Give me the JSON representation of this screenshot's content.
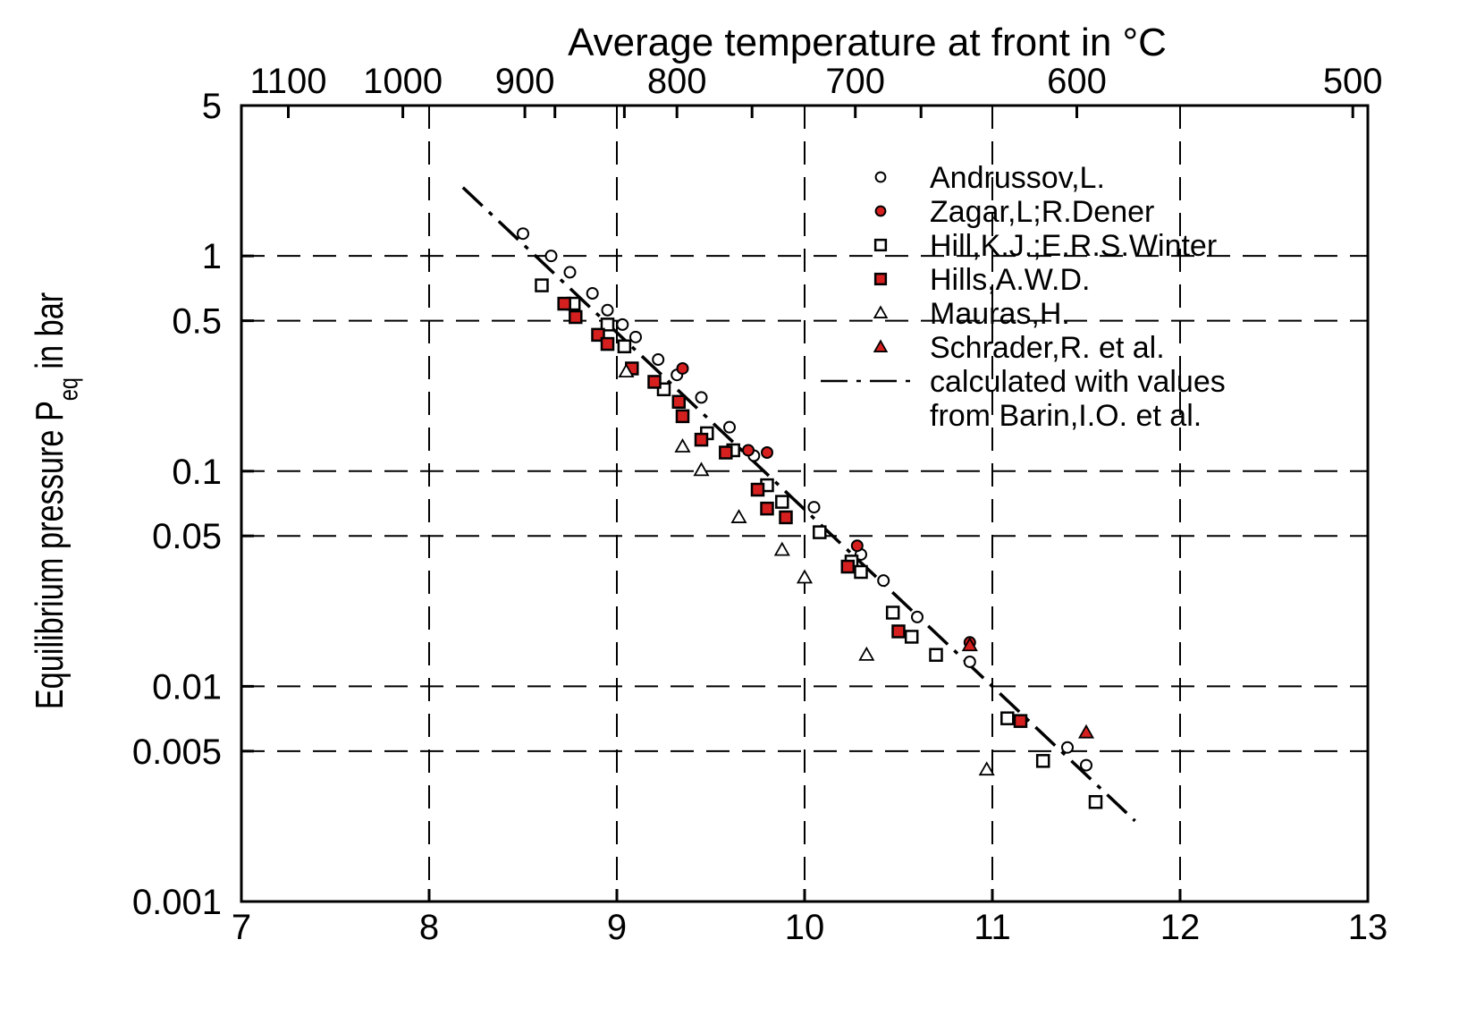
{
  "chart_data": {
    "type": "scatter",
    "top_axis_label": "Average temperature at front in °C",
    "ylabel_main": "Equilibrium pressure P",
    "ylabel_sub": "eq",
    "ylabel_tail": " in bar",
    "x_range": [
      7,
      13
    ],
    "x_ticks": [
      "7",
      "8",
      "9",
      "10",
      "11",
      "12",
      "13"
    ],
    "y_log": true,
    "y_range": [
      0.001,
      5
    ],
    "y_ticks": [
      {
        "value": 0.001,
        "label": "0.001"
      },
      {
        "value": 0.005,
        "label": "0.005"
      },
      {
        "value": 0.01,
        "label": "0.01"
      },
      {
        "value": 0.05,
        "label": "0.05"
      },
      {
        "value": 0.1,
        "label": "0.1"
      },
      {
        "value": 0.5,
        "label": "0.5"
      },
      {
        "value": 1,
        "label": "1"
      },
      {
        "value": 5,
        "label": "5"
      }
    ],
    "top_ticks": [
      {
        "x": 7.25,
        "label": "1100"
      },
      {
        "x": 7.86,
        "label": "1000"
      },
      {
        "x": 8.51,
        "label": "900"
      },
      {
        "x": 8.67,
        "label": ""
      },
      {
        "x": 9.04,
        "label": ""
      },
      {
        "x": 9.32,
        "label": "800"
      },
      {
        "x": 9.72,
        "label": ""
      },
      {
        "x": 10.27,
        "label": "700"
      },
      {
        "x": 10.62,
        "label": ""
      },
      {
        "x": 11.45,
        "label": "600"
      },
      {
        "x": 12.92,
        "label": "500"
      }
    ],
    "grid": "dashed",
    "legend_position": "top-right",
    "series": [
      {
        "name": "Andrussov,L.",
        "marker": "circle",
        "fill": "#ffffff",
        "stroke": "#000000",
        "points": [
          [
            8.5,
            1.27
          ],
          [
            8.65,
            1.0
          ],
          [
            8.75,
            0.84
          ],
          [
            8.87,
            0.67
          ],
          [
            8.95,
            0.56
          ],
          [
            9.03,
            0.48
          ],
          [
            9.1,
            0.42
          ],
          [
            9.22,
            0.33
          ],
          [
            9.32,
            0.28
          ],
          [
            9.45,
            0.22
          ],
          [
            9.6,
            0.16
          ],
          [
            9.73,
            0.118
          ],
          [
            10.05,
            0.068
          ],
          [
            10.3,
            0.041
          ],
          [
            10.42,
            0.031
          ],
          [
            10.6,
            0.021
          ],
          [
            10.88,
            0.013
          ],
          [
            11.4,
            0.0052
          ],
          [
            11.5,
            0.0043
          ]
        ]
      },
      {
        "name": "Zagar,L;R.Dener",
        "marker": "circle",
        "fill": "#d62020",
        "stroke": "#000000",
        "points": [
          [
            9.35,
            0.3
          ],
          [
            9.7,
            0.125
          ],
          [
            9.8,
            0.122
          ],
          [
            10.28,
            0.045
          ],
          [
            10.88,
            0.016
          ]
        ]
      },
      {
        "name": "Hill,K.J.;E.R.S.Winter",
        "marker": "square",
        "fill": "#ffffff",
        "stroke": "#000000",
        "points": [
          [
            8.6,
            0.73
          ],
          [
            8.77,
            0.6
          ],
          [
            8.95,
            0.48
          ],
          [
            9.04,
            0.38
          ],
          [
            9.25,
            0.24
          ],
          [
            9.48,
            0.15
          ],
          [
            9.62,
            0.125
          ],
          [
            9.8,
            0.086
          ],
          [
            9.88,
            0.072
          ],
          [
            10.08,
            0.052
          ],
          [
            10.25,
            0.038
          ],
          [
            10.3,
            0.034
          ],
          [
            10.47,
            0.022
          ],
          [
            10.57,
            0.017
          ],
          [
            10.7,
            0.014
          ],
          [
            11.08,
            0.0071
          ],
          [
            11.27,
            0.0045
          ],
          [
            11.55,
            0.0029
          ]
        ]
      },
      {
        "name": "Hills,A.W.D.",
        "marker": "square",
        "fill": "#d62020",
        "stroke": "#000000",
        "points": [
          [
            8.72,
            0.6
          ],
          [
            8.78,
            0.52
          ],
          [
            8.9,
            0.43
          ],
          [
            8.95,
            0.39
          ],
          [
            9.08,
            0.3
          ],
          [
            9.2,
            0.26
          ],
          [
            9.33,
            0.21
          ],
          [
            9.35,
            0.18
          ],
          [
            9.45,
            0.14
          ],
          [
            9.58,
            0.122
          ],
          [
            9.75,
            0.082
          ],
          [
            9.8,
            0.067
          ],
          [
            9.9,
            0.061
          ],
          [
            10.23,
            0.036
          ],
          [
            10.5,
            0.018
          ],
          [
            11.15,
            0.0069
          ]
        ]
      },
      {
        "name": "Mauras,H.",
        "marker": "triangle",
        "fill": "#ffffff",
        "stroke": "#000000",
        "points": [
          [
            9.05,
            0.29
          ],
          [
            9.35,
            0.13
          ],
          [
            9.45,
            0.101
          ],
          [
            9.65,
            0.061
          ],
          [
            9.88,
            0.043
          ],
          [
            10.0,
            0.032
          ],
          [
            10.33,
            0.014
          ],
          [
            10.97,
            0.0041
          ]
        ]
      },
      {
        "name": "Schrader,R. et al.",
        "marker": "triangle",
        "fill": "#d62020",
        "stroke": "#000000",
        "points": [
          [
            10.88,
            0.0155
          ],
          [
            11.5,
            0.0061
          ]
        ]
      },
      {
        "name": "calculated with values from Barin,I.O. et al.",
        "marker": "line-dashdot",
        "points": [
          [
            8.18,
            2.08
          ],
          [
            11.76,
            0.00237
          ]
        ]
      }
    ],
    "legend": [
      {
        "text": "Andrussov,L."
      },
      {
        "text": "Zagar,L;R.Dener"
      },
      {
        "text": "Hill,K.J.;E.R.S.Winter"
      },
      {
        "text": "Hills,A.W.D."
      },
      {
        "text": "Mauras,H."
      },
      {
        "text": "Schrader,R. et al."
      },
      {
        "text": "calculated with values"
      },
      {
        "text": "from Barin,I.O. et al."
      }
    ]
  }
}
